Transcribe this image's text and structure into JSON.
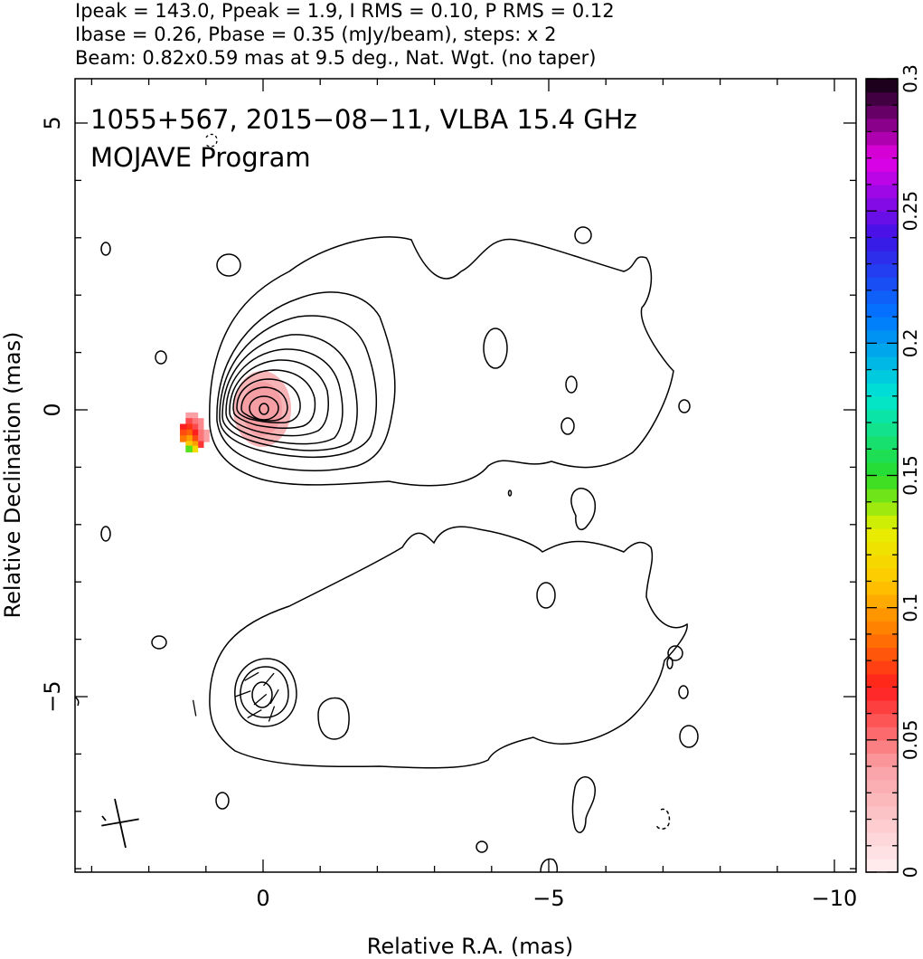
{
  "header": {
    "line1": "Ipeak = 143.0, Ppeak = 1.9, I RMS = 0.10, P RMS = 0.12",
    "line2": "Ibase = 0.26, Pbase = 0.35 (mJy/beam), steps: x 2",
    "line3": "Beam: 0.82x0.59 mas at 9.5 deg., Nat. Wgt. (no taper)"
  },
  "chart_data": [
    {
      "type": "contour",
      "panel": "total-intensity",
      "title_line1": "1055+567, 2015−08−11, VLBA 15.4 GHz",
      "title_line2": "MOJAVE Program",
      "xlabel": "Relative R.A. (mas)",
      "ylabel": "Relative Declination (mas)",
      "xlim": [
        3.3,
        -10.7
      ],
      "ylim": [
        -8.1,
        5.8
      ],
      "x_ticks": [
        0,
        -5,
        -10
      ],
      "x_tick_labels": [
        "0",
        "−5",
        "−10"
      ],
      "y_ticks": [
        5,
        0,
        -5
      ],
      "y_tick_labels": [
        "5",
        "0",
        "−5"
      ],
      "peak_position": [
        0,
        0
      ],
      "contour_base_mJy_per_beam": 0.26,
      "contour_step_factor": 2,
      "beam": {
        "major_mas": 0.82,
        "minor_mas": 0.59,
        "pa_deg": 9.5,
        "position": "bottom-left"
      },
      "polarization_pixels": [
        {
          "x": 1.2,
          "y": -0.1,
          "value": 0.04
        },
        {
          "x": 1.3,
          "y": -0.1,
          "value": 0.04
        },
        {
          "x": 1.1,
          "y": -0.2,
          "value": 0.045
        },
        {
          "x": 1.2,
          "y": -0.2,
          "value": 0.05
        },
        {
          "x": 1.3,
          "y": -0.2,
          "value": 0.06
        },
        {
          "x": 1.1,
          "y": -0.3,
          "value": 0.045
        },
        {
          "x": 1.2,
          "y": -0.3,
          "value": 0.06
        },
        {
          "x": 1.3,
          "y": -0.3,
          "value": 0.075
        },
        {
          "x": 1.4,
          "y": -0.3,
          "value": 0.07
        },
        {
          "x": 1.0,
          "y": -0.4,
          "value": 0.04
        },
        {
          "x": 1.1,
          "y": -0.4,
          "value": 0.05
        },
        {
          "x": 1.2,
          "y": -0.4,
          "value": 0.07
        },
        {
          "x": 1.3,
          "y": -0.4,
          "value": 0.085
        },
        {
          "x": 1.4,
          "y": -0.4,
          "value": 0.08
        },
        {
          "x": 1.0,
          "y": -0.5,
          "value": 0.04
        },
        {
          "x": 1.1,
          "y": -0.5,
          "value": 0.05
        },
        {
          "x": 1.2,
          "y": -0.5,
          "value": 0.08
        },
        {
          "x": 1.3,
          "y": -0.5,
          "value": 0.1
        },
        {
          "x": 1.4,
          "y": -0.5,
          "value": 0.09
        },
        {
          "x": 1.1,
          "y": -0.6,
          "value": 0.065
        },
        {
          "x": 1.2,
          "y": -0.6,
          "value": 0.1
        },
        {
          "x": 1.3,
          "y": -0.6,
          "value": 0.11
        },
        {
          "x": 1.2,
          "y": -0.68,
          "value": 0.12
        },
        {
          "x": 1.3,
          "y": -0.68,
          "value": 0.145
        }
      ],
      "colorbar": {
        "min": 0,
        "max": 0.3,
        "ticks": [
          0,
          0.05,
          0.1,
          0.15,
          0.2,
          0.25,
          0.3
        ],
        "tick_labels": [
          "0",
          "0.05",
          "0.1",
          "0.15",
          "0.2",
          "0.25",
          "0.3"
        ]
      }
    },
    {
      "type": "contour",
      "panel": "polarized-intensity",
      "peak_position": [
        0,
        -5
      ],
      "contour_base_mJy_per_beam": 0.35,
      "contour_step_factor": 2,
      "evpa_ticks": [
        {
          "x": 0.2,
          "y": -4.65,
          "angle_deg": 150
        },
        {
          "x": -0.1,
          "y": -4.7,
          "angle_deg": 130
        },
        {
          "x": 0.35,
          "y": -4.95,
          "angle_deg": 160
        },
        {
          "x": 0.05,
          "y": -5.05,
          "angle_deg": 140
        },
        {
          "x": -0.2,
          "y": -5.0,
          "angle_deg": 120
        },
        {
          "x": 0.15,
          "y": -5.3,
          "angle_deg": 150
        },
        {
          "x": -0.15,
          "y": -5.3,
          "angle_deg": 110
        },
        {
          "x": 1.2,
          "y": -5.2,
          "angle_deg": 80
        }
      ]
    }
  ]
}
